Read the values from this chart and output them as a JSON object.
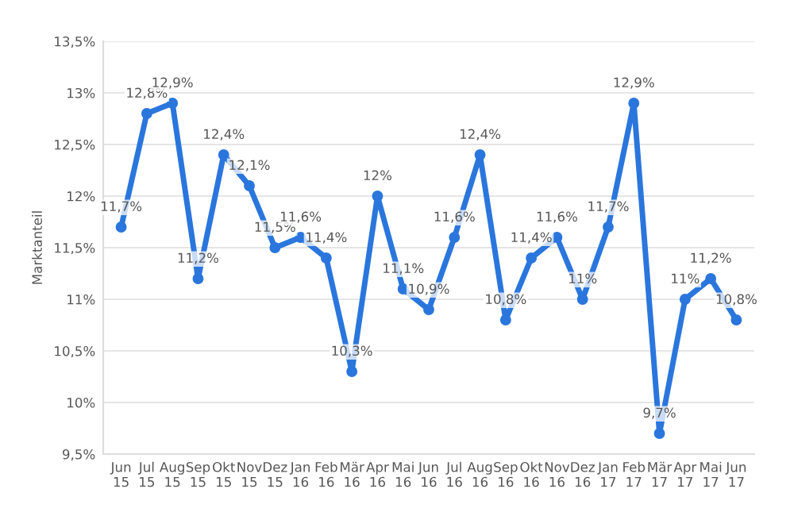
{
  "chart_data": {
    "type": "line",
    "ylabel": "Marktanteil",
    "categories": [
      "Jun\n15",
      "Jul\n15",
      "Aug\n15",
      "Sep\n15",
      "Okt\n15",
      "Nov\n15",
      "Dez\n15",
      "Jan\n16",
      "Feb\n16",
      "Mär\n16",
      "Apr\n16",
      "Mai\n16",
      "Jun\n16",
      "Jul\n16",
      "Aug\n16",
      "Sep\n16",
      "Okt\n16",
      "Nov\n16",
      "Dez\n16",
      "Jan\n17",
      "Feb\n17",
      "Mär\n17",
      "Apr\n17",
      "Mai\n17",
      "Jun\n17"
    ],
    "series": [
      {
        "color": "#2a76dd",
        "values": [
          11.7,
          12.8,
          12.9,
          11.2,
          12.4,
          12.1,
          11.5,
          11.6,
          11.4,
          10.3,
          12,
          11.1,
          10.9,
          11.6,
          12.4,
          10.8,
          11.4,
          11.6,
          11,
          11.7,
          12.9,
          9.7,
          11,
          11.2,
          10.8
        ],
        "value_labels": [
          "11,7%",
          "12,8%",
          "12,9%",
          "11,2%",
          "12,4%",
          "12,1%",
          "11,5%",
          "11,6%",
          "11,4%",
          "10,3%",
          "12%",
          "11,1%",
          "10,9%",
          "11,6%",
          "12,4%",
          "10,8%",
          "11,4%",
          "11,6%",
          "11%",
          "11,7%",
          "12,9%",
          "9,7%",
          "11%",
          "11,2%",
          "10,8%"
        ]
      }
    ],
    "ylim": [
      9.5,
      13.5
    ],
    "yticks": [
      {
        "value": 9.5,
        "label": "9,5%"
      },
      {
        "value": 10,
        "label": "10%"
      },
      {
        "value": 10.5,
        "label": "10,5%"
      },
      {
        "value": 11,
        "label": "11%"
      },
      {
        "value": 11.5,
        "label": "11,5%"
      },
      {
        "value": 12,
        "label": "12%"
      },
      {
        "value": 12.5,
        "label": "12,5%"
      },
      {
        "value": 13,
        "label": "13%"
      },
      {
        "value": 13.5,
        "label": "13,5%"
      }
    ],
    "grid": "y",
    "marker": "circle",
    "line_style": "solid"
  }
}
